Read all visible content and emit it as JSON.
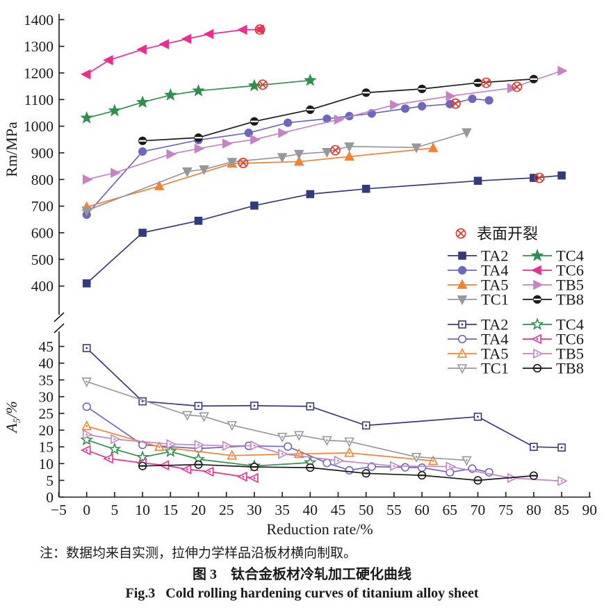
{
  "figure": {
    "note": "注：数据均来自实测，拉伸力学样品沿板材横向制取。",
    "caption_zh": "图 3　钛合金板材冷轧加工硬化曲线",
    "caption_en": "Fig.3   Cold rolling hardening curves of titanium alloy sheet"
  },
  "chart_data": {
    "type": "line",
    "x_axis": {
      "label": "Reduction rate/%",
      "min": -5,
      "max": 90,
      "tick_step": 5
    },
    "top_plot": {
      "ylabel": "Rm/MPa",
      "ymin": 400,
      "ymax": 1400,
      "tick_step": 100,
      "marker_style": "filled"
    },
    "bottom_plot": {
      "ylabel": "A₅/%",
      "ymin": 0,
      "ymax": 45,
      "tick_step": 5,
      "marker_style": "open"
    },
    "crack_marker_label": "表面开裂",
    "crack_color": "#e23b2e",
    "axis_color": "#1a1a1a",
    "series": [
      {
        "name": "TA2",
        "color": "#343b7d",
        "marker": "square",
        "top_x": [
          0,
          10,
          20,
          30,
          40,
          50,
          70,
          80,
          85
        ],
        "top_rm": [
          410,
          600,
          645,
          702,
          745,
          765,
          795,
          806,
          815
        ],
        "crack_top": [
          81,
          806
        ],
        "bot_x": [
          0,
          10,
          20,
          30,
          40,
          50,
          70,
          80,
          85
        ],
        "bot_a5": [
          44.5,
          28.6,
          27.2,
          27.3,
          27.1,
          21.4,
          24,
          15,
          14.8
        ]
      },
      {
        "name": "TA4",
        "color": "#6f66c0",
        "marker": "circle",
        "top_x": [
          0,
          10,
          20,
          29,
          36,
          43,
          47,
          51,
          57,
          60,
          65,
          69,
          72
        ],
        "top_rm": [
          668,
          905,
          948,
          975,
          1013,
          1028,
          1038,
          1048,
          1066,
          1075,
          1083,
          1103,
          1097
        ],
        "crack_top": [
          66,
          1085
        ],
        "bot_x": [
          0,
          10,
          20,
          29,
          36,
          43,
          47,
          51,
          57,
          60,
          65,
          69,
          72
        ],
        "bot_a5": [
          27,
          15.6,
          14.5,
          15.3,
          15.1,
          10.2,
          8,
          9.1,
          8.9,
          8.8,
          7.4,
          8.5,
          7.4
        ]
      },
      {
        "name": "TA5",
        "color": "#f58232",
        "marker": "triangle-up",
        "top_x": [
          0,
          13,
          26,
          38,
          47,
          62
        ],
        "top_rm": [
          697,
          775,
          860,
          867,
          886,
          918
        ],
        "crack_top": [
          28,
          862
        ],
        "bot_x": [
          0,
          13,
          26,
          38,
          47,
          62
        ],
        "bot_a5": [
          21.2,
          15,
          12.4,
          12.9,
          13.2,
          10.8
        ]
      },
      {
        "name": "TC1",
        "color": "#97989b",
        "marker": "triangle-down",
        "top_x": [
          0,
          18,
          21,
          26,
          35,
          38,
          43,
          47,
          59,
          68
        ],
        "top_rm": [
          683,
          830,
          838,
          866,
          884,
          896,
          903,
          924,
          920,
          977
        ],
        "crack_top": [
          44.5,
          910
        ],
        "bot_x": [
          0,
          18,
          21,
          26,
          35,
          38,
          43,
          47,
          59,
          68
        ],
        "bot_a5": [
          34.5,
          24.5,
          24.1,
          21.5,
          18,
          18.5,
          17,
          16.6,
          12,
          11
        ]
      },
      {
        "name": "TC4",
        "color": "#2e8f4e",
        "marker": "star",
        "top_x": [
          0,
          5,
          10,
          15,
          20,
          30,
          40
        ],
        "top_rm": [
          1031,
          1058,
          1090,
          1117,
          1133,
          1152,
          1172
        ],
        "crack_top": [
          31.5,
          1156
        ],
        "bot_x": [
          0,
          5,
          10,
          15,
          20,
          30,
          40
        ],
        "bot_a5": [
          17.1,
          14.3,
          11.9,
          13.6,
          11.3,
          9.3,
          10.3
        ]
      },
      {
        "name": "TC6",
        "color": "#ee2d90",
        "marker": "triangle-left",
        "top_x": [
          0,
          4,
          10,
          14,
          18,
          22,
          28,
          31
        ],
        "top_rm": [
          1195,
          1248,
          1288,
          1308,
          1328,
          1346,
          1362,
          1363
        ],
        "crack_top": [
          31,
          1363
        ],
        "bot_x": [
          0,
          4,
          10,
          14,
          18,
          22,
          28,
          30
        ],
        "bot_a5": [
          14,
          11.5,
          10.2,
          9.5,
          8.3,
          7.6,
          6.1,
          5.7
        ]
      },
      {
        "name": "TB5",
        "color": "#c583c5",
        "marker": "triangle-right",
        "top_x": [
          0,
          5,
          15,
          20,
          25,
          30,
          35,
          45,
          55,
          65,
          76,
          85
        ],
        "top_rm": [
          800,
          825,
          895,
          916,
          935,
          950,
          975,
          1025,
          1080,
          1113,
          1143,
          1208
        ],
        "crack_top": [
          77,
          1148
        ],
        "bot_x": [
          0,
          5,
          15,
          20,
          25,
          30,
          35,
          45,
          55,
          65,
          76,
          85
        ],
        "bot_a5": [
          18.7,
          17.3,
          15.8,
          15.6,
          15.3,
          15.4,
          12.9,
          10.9,
          9.3,
          9.1,
          5.7,
          4.8
        ]
      },
      {
        "name": "TB8",
        "color": "#1a1a1a",
        "marker": "circle-slash",
        "top_x": [
          10,
          20,
          30,
          40,
          50,
          60,
          70,
          80
        ],
        "top_rm": [
          945,
          957,
          1018,
          1062,
          1126,
          1140,
          1163,
          1177
        ],
        "crack_top": [
          71.5,
          1163
        ],
        "bot_x": [
          10,
          20,
          30,
          40,
          50,
          60,
          70,
          80
        ],
        "bot_a5": [
          9.3,
          9.7,
          9,
          8.8,
          7.1,
          6.5,
          5,
          6.4
        ]
      }
    ]
  }
}
